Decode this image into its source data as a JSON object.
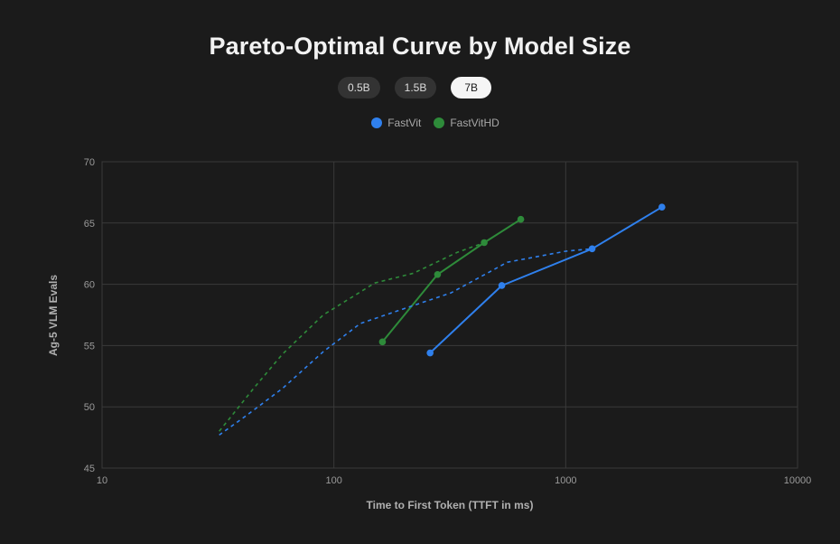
{
  "title": "Pareto-Optimal Curve by Model Size",
  "tabs": [
    {
      "label": "0.5B",
      "active": false
    },
    {
      "label": "1.5B",
      "active": false
    },
    {
      "label": "7B",
      "active": true
    }
  ],
  "legend": [
    {
      "label": "FastVit",
      "color": "#2f80ed"
    },
    {
      "label": "FastVitHD",
      "color": "#2e8b3a"
    }
  ],
  "chart_data": {
    "type": "line",
    "title": "Pareto-Optimal Curve by Model Size",
    "xlabel": "Time to First Token (TTFT in ms)",
    "ylabel": "Ag-5 VLM Evals",
    "x_scale": "log",
    "xlim": [
      10,
      10000
    ],
    "ylim": [
      45,
      70
    ],
    "x_ticks": [
      "10",
      "100",
      "1000",
      "10000"
    ],
    "x_tick_values": [
      10,
      100,
      1000,
      10000
    ],
    "y_ticks": [
      "45",
      "50",
      "55",
      "60",
      "65",
      "70"
    ],
    "y_tick_values": [
      45,
      50,
      55,
      60,
      65,
      70
    ],
    "grid": true,
    "legend_position": "top-center",
    "series": [
      {
        "name": "FastVit",
        "style": "solid",
        "markers": true,
        "color": "#2f80ed",
        "x": [
          260,
          530,
          1300,
          2600
        ],
        "y": [
          54.4,
          59.9,
          62.9,
          66.3
        ]
      },
      {
        "name": "FastVitHD",
        "style": "solid",
        "markers": true,
        "color": "#2e8b3a",
        "x": [
          162,
          280,
          445,
          640
        ],
        "y": [
          55.3,
          60.8,
          63.4,
          65.3
        ]
      },
      {
        "name": "",
        "style": "dashed",
        "markers": false,
        "color": "#2f80ed",
        "x": [
          32,
          42,
          60,
          90,
          130,
          200,
          320,
          560,
          1000,
          1300
        ],
        "y": [
          47.7,
          49.3,
          51.5,
          54.5,
          56.8,
          58.0,
          59.3,
          61.8,
          62.7,
          62.9
        ]
      },
      {
        "name": "",
        "style": "dashed",
        "markers": false,
        "color": "#2e8b3a",
        "x": [
          32,
          45,
          60,
          90,
          150,
          220,
          340,
          445
        ],
        "y": [
          48.0,
          51.5,
          54.3,
          57.5,
          60.1,
          60.9,
          62.6,
          63.4
        ]
      }
    ]
  }
}
